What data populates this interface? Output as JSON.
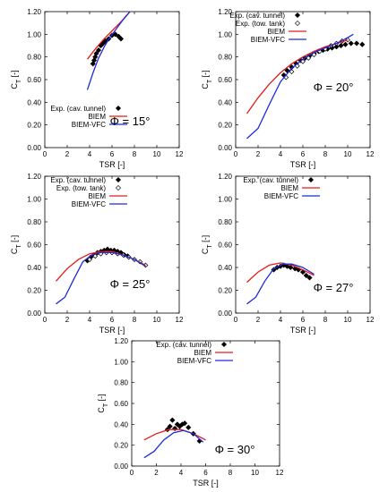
{
  "colors": {
    "biem": "#e41a1c",
    "vfc": "#1f2bd6",
    "exp": "#000000",
    "axis": "#000000"
  },
  "x_ticks": [
    "0",
    "2",
    "4",
    "6",
    "8",
    "10",
    "12"
  ],
  "y_ticks": [
    "0.00",
    "0.20",
    "0.40",
    "0.60",
    "0.80",
    "1.00",
    "1.20"
  ],
  "xlabel": "TSR [-]",
  "ylabel": "C",
  "ylabel_sub": "T",
  "ylabel_unit": " [-]",
  "chart_data": [
    {
      "type": "line",
      "phi_label": "Φ = 15°",
      "xlim": [
        0,
        12
      ],
      "ylim": [
        0,
        1.2
      ],
      "legend": "bottom-right",
      "series": [
        {
          "name": "Exp. (cav. tunnel)",
          "kind": "marker-filled",
          "x": [
            4.3,
            4.4,
            4.5,
            4.6,
            4.8,
            5.0,
            5.2,
            5.4,
            5.7,
            6.0,
            6.3,
            6.6,
            6.8
          ],
          "y": [
            0.74,
            0.77,
            0.8,
            0.83,
            0.86,
            0.9,
            0.92,
            0.94,
            0.96,
            0.99,
            1.0,
            0.98,
            0.96
          ]
        },
        {
          "name": "BIEM",
          "kind": "line",
          "x": [
            3.8,
            4.5,
            5.2,
            6.0,
            6.8,
            7.6
          ],
          "y": [
            0.78,
            0.87,
            0.95,
            1.03,
            1.11,
            1.2
          ]
        },
        {
          "name": "BIEM-VFC",
          "kind": "line",
          "x": [
            3.8,
            4.3,
            4.8,
            5.3,
            5.8,
            6.4,
            7.0,
            7.6
          ],
          "y": [
            0.51,
            0.66,
            0.79,
            0.89,
            0.97,
            1.05,
            1.13,
            1.2
          ]
        }
      ]
    },
    {
      "type": "line",
      "phi_label": "Φ = 20°",
      "xlim": [
        0,
        12
      ],
      "ylim": [
        0,
        1.2
      ],
      "legend": "top-left",
      "series": [
        {
          "name": "Exp. (cav. tunnel)",
          "kind": "marker-filled",
          "x": [
            4.3,
            4.6,
            5.0,
            5.4,
            5.8,
            6.2,
            6.6,
            7.0,
            7.4,
            7.8,
            8.2,
            8.6,
            9.0,
            9.4,
            9.8,
            10.3,
            10.8,
            11.3
          ],
          "y": [
            0.64,
            0.68,
            0.71,
            0.74,
            0.77,
            0.79,
            0.81,
            0.83,
            0.85,
            0.86,
            0.87,
            0.88,
            0.89,
            0.9,
            0.91,
            0.92,
            0.92,
            0.91
          ]
        },
        {
          "name": "Exp. (tow. tank)",
          "kind": "marker-open",
          "x": [
            4.5,
            5.0,
            5.5,
            6.0,
            6.5,
            7.0,
            7.5,
            8.0,
            8.5,
            9.0,
            9.5,
            10.0
          ],
          "y": [
            0.62,
            0.67,
            0.72,
            0.76,
            0.79,
            0.82,
            0.85,
            0.87,
            0.9,
            0.92,
            0.94,
            0.95
          ]
        },
        {
          "name": "BIEM",
          "kind": "line",
          "x": [
            1.0,
            2.0,
            3.0,
            4.0,
            5.0,
            6.0,
            7.0,
            8.0,
            9.0,
            10.0
          ],
          "y": [
            0.3,
            0.44,
            0.56,
            0.66,
            0.74,
            0.8,
            0.85,
            0.89,
            0.92,
            0.95
          ]
        },
        {
          "name": "BIEM-VFC",
          "kind": "line",
          "x": [
            1.0,
            2.0,
            3.0,
            4.0,
            5.0,
            6.0,
            7.0,
            8.0,
            9.0,
            10.0,
            10.5
          ],
          "y": [
            0.08,
            0.17,
            0.38,
            0.58,
            0.7,
            0.78,
            0.84,
            0.88,
            0.92,
            0.97,
            1.0
          ]
        }
      ]
    },
    {
      "type": "line",
      "phi_label": "Φ = 25°",
      "xlim": [
        0,
        12
      ],
      "ylim": [
        0,
        1.2
      ],
      "legend": "top-left",
      "series": [
        {
          "name": "Exp. (cav. tunnel)",
          "kind": "marker-filled",
          "x": [
            3.8,
            4.1,
            4.4,
            4.7,
            5.0,
            5.3,
            5.6,
            5.9,
            6.2,
            6.5,
            6.8,
            7.1,
            7.4
          ],
          "y": [
            0.46,
            0.49,
            0.51,
            0.53,
            0.54,
            0.55,
            0.56,
            0.55,
            0.55,
            0.54,
            0.53,
            0.51,
            0.5
          ]
        },
        {
          "name": "Exp. (tow. tank)",
          "kind": "marker-open",
          "x": [
            4.0,
            4.5,
            5.0,
            5.5,
            6.0,
            6.5,
            7.0,
            7.5,
            8.0,
            8.5,
            9.0
          ],
          "y": [
            0.47,
            0.5,
            0.52,
            0.53,
            0.53,
            0.52,
            0.51,
            0.49,
            0.47,
            0.45,
            0.42
          ]
        },
        {
          "name": "BIEM",
          "kind": "line",
          "x": [
            1.0,
            2.0,
            3.0,
            4.0,
            5.0,
            6.0,
            7.0,
            8.0,
            9.0
          ],
          "y": [
            0.28,
            0.39,
            0.47,
            0.52,
            0.54,
            0.54,
            0.51,
            0.47,
            0.42
          ]
        },
        {
          "name": "BIEM-VFC",
          "kind": "line",
          "x": [
            1.0,
            1.8,
            2.6,
            3.4,
            4.2,
            5.0,
            6.0,
            7.0,
            8.0,
            9.0
          ],
          "y": [
            0.08,
            0.14,
            0.3,
            0.45,
            0.51,
            0.53,
            0.53,
            0.51,
            0.47,
            0.41
          ]
        }
      ]
    },
    {
      "type": "line",
      "phi_label": "Φ = 27°",
      "xlim": [
        0,
        12
      ],
      "ylim": [
        0,
        1.2
      ],
      "legend": "top-right",
      "series": [
        {
          "name": "Exp. (cav. tunnel)",
          "kind": "marker-filled",
          "x": [
            3.4,
            3.7,
            4.0,
            4.3,
            4.6,
            4.9,
            5.3,
            5.6,
            6.0,
            6.3,
            6.6
          ],
          "y": [
            0.38,
            0.4,
            0.41,
            0.42,
            0.41,
            0.4,
            0.39,
            0.38,
            0.36,
            0.33,
            0.31
          ]
        },
        {
          "name": "BIEM",
          "kind": "line",
          "x": [
            1.0,
            2.0,
            3.0,
            4.0,
            5.0,
            6.0,
            7.0
          ],
          "y": [
            0.27,
            0.36,
            0.42,
            0.44,
            0.42,
            0.38,
            0.33
          ]
        },
        {
          "name": "BIEM-VFC",
          "kind": "line",
          "x": [
            1.0,
            1.8,
            2.6,
            3.4,
            4.2,
            5.0,
            6.0,
            7.0
          ],
          "y": [
            0.08,
            0.14,
            0.28,
            0.39,
            0.43,
            0.43,
            0.4,
            0.34
          ]
        }
      ]
    },
    {
      "type": "line",
      "phi_label": "Φ = 30°",
      "xlim": [
        0,
        12
      ],
      "ylim": [
        0,
        1.2
      ],
      "legend": "top-left",
      "series": [
        {
          "name": "Exp. (cav. tunnel)",
          "kind": "marker-filled",
          "x": [
            2.9,
            3.1,
            3.3,
            3.5,
            3.7,
            3.9,
            4.1,
            4.3,
            4.6,
            5.0,
            5.5
          ],
          "y": [
            0.35,
            0.38,
            0.44,
            0.36,
            0.4,
            0.38,
            0.4,
            0.41,
            0.37,
            0.31,
            0.24
          ]
        },
        {
          "name": "BIEM",
          "kind": "line",
          "x": [
            1.0,
            2.0,
            3.0,
            4.0,
            5.0,
            6.0
          ],
          "y": [
            0.25,
            0.31,
            0.35,
            0.35,
            0.31,
            0.25
          ]
        },
        {
          "name": "BIEM-VFC",
          "kind": "line",
          "x": [
            1.0,
            1.8,
            2.6,
            3.4,
            4.2,
            5.0,
            5.8
          ],
          "y": [
            0.08,
            0.14,
            0.25,
            0.32,
            0.34,
            0.31,
            0.23
          ]
        }
      ]
    }
  ]
}
